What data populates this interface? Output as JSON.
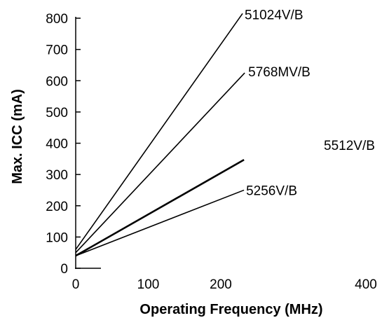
{
  "chart_data": {
    "type": "line",
    "xlabel": "Operating Frequency (MHz)",
    "ylabel": "Max. ICC (mA)",
    "xlim": [
      0,
      400
    ],
    "ylim": [
      0,
      800
    ],
    "x_ticks": [
      "0",
      "100",
      "200",
      "400"
    ],
    "x_tick_values": [
      0,
      100,
      200,
      400
    ],
    "y_ticks": [
      "0",
      "100",
      "200",
      "300",
      "400",
      "500",
      "600",
      "700",
      "800"
    ],
    "y_tick_values": [
      0,
      100,
      200,
      300,
      400,
      500,
      600,
      700,
      800
    ],
    "grid": false,
    "legend": "none",
    "series": [
      {
        "name": "51024V/B",
        "x": [
          0,
          230
        ],
        "y": [
          60,
          815
        ],
        "weight": "normal"
      },
      {
        "name": "5768MV/B",
        "x": [
          0,
          233
        ],
        "y": [
          50,
          625
        ],
        "weight": "normal"
      },
      {
        "name": "5512V/B",
        "x": [
          0,
          232
        ],
        "y": [
          40,
          347
        ],
        "weight": "bold"
      },
      {
        "name": "5256V/B",
        "x": [
          0,
          232
        ],
        "y": [
          40,
          250
        ],
        "weight": "normal"
      }
    ]
  }
}
